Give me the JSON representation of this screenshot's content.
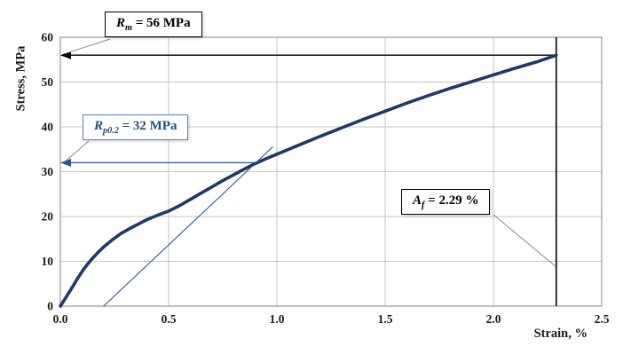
{
  "chart_data": {
    "type": "line",
    "title": "",
    "xlabel": "Strain, %",
    "ylabel": "Stress, MPa",
    "xlim": [
      0,
      2.5
    ],
    "ylim": [
      0,
      60
    ],
    "xticks": [
      "0.0",
      "0.5",
      "1.0",
      "1.5",
      "2.0",
      "2.5"
    ],
    "yticks": [
      "0",
      "10",
      "20",
      "30",
      "40",
      "50",
      "60"
    ],
    "grid": true,
    "legend": "none",
    "series": [
      {
        "name": "stress-strain-curve",
        "color": "#1f3864",
        "width": 3.6,
        "x": [
          0,
          0.02,
          0.05,
          0.08,
          0.11,
          0.14,
          0.17,
          0.2,
          0.24,
          0.28,
          0.32,
          0.36,
          0.4,
          0.45,
          0.5,
          0.55,
          0.6,
          0.65,
          0.7,
          0.75,
          0.8,
          0.85,
          0.9,
          0.95,
          1.0,
          1.05,
          1.1,
          1.2,
          1.3,
          1.4,
          1.5,
          1.6,
          1.7,
          1.8,
          1.9,
          2.0,
          2.1,
          2.2,
          2.29
        ],
        "y": [
          0,
          1.5,
          3.8,
          6.2,
          8.4,
          10.2,
          11.8,
          13.2,
          14.8,
          16.2,
          17.3,
          18.3,
          19.3,
          20.3,
          21.2,
          22.4,
          23.8,
          25.2,
          26.6,
          28.0,
          29.3,
          30.6,
          31.8,
          32.9,
          33.9,
          34.9,
          35.9,
          37.9,
          39.8,
          41.7,
          43.5,
          45.3,
          47.0,
          48.6,
          50.1,
          51.6,
          53.1,
          54.5,
          56.0
        ]
      },
      {
        "name": "offset-line-0-2-percent",
        "color": "#2e5395",
        "width": 1.1,
        "x": [
          0.2,
          0.98
        ],
        "y": [
          0,
          35.5
        ]
      }
    ],
    "reference_lines": {
      "rm": {
        "y": 56,
        "x_start": 0,
        "x_end": 2.29,
        "color": "#000000"
      },
      "rp": {
        "y": 32,
        "x_start": 0,
        "x_end": 0.9,
        "color": "#2e5395"
      },
      "af": {
        "x": 2.29,
        "color": "#000000"
      }
    },
    "annotations": {
      "rm": {
        "symbol": "R",
        "sub": "m",
        "rest": " =  56 MPa",
        "value": 56
      },
      "rp02": {
        "symbol": "R",
        "sub": "p0.2",
        "rest": " = 32 MPa",
        "value": 32
      },
      "af": {
        "symbol": "A",
        "sub": "f",
        "rest": " = 2.29 %",
        "value": 2.29
      }
    },
    "colors": {
      "curve": "#1f3864",
      "offset_line": "#2e5395",
      "grid": "#c6c6c6",
      "border": "#9a9a9a",
      "leader": "#8a8a8a"
    }
  }
}
